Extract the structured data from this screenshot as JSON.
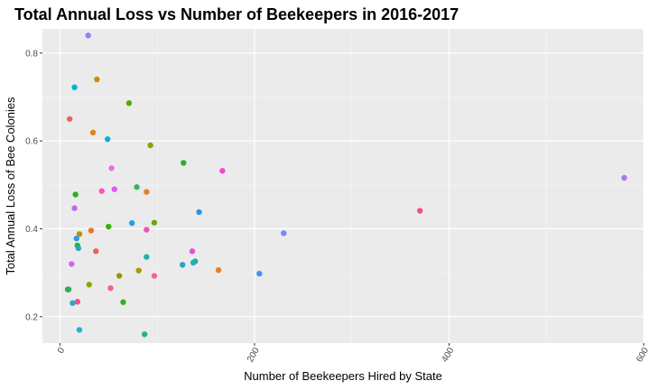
{
  "chart_data": {
    "type": "scatter",
    "title": "Total Annual Loss vs Number of Beekeepers in 2016-2017",
    "xlabel": "Number of Beekeepers Hired by State",
    "ylabel": "Total Annual Loss of Bee Colonies",
    "xlim": [
      -18,
      600
    ],
    "ylim": [
      0.14,
      0.855
    ],
    "x_ticks": [
      0,
      200,
      400,
      600
    ],
    "x_tick_labels": [
      "0",
      "200",
      "400",
      "600"
    ],
    "y_ticks": [
      0.2,
      0.4,
      0.6,
      0.8
    ],
    "y_tick_labels": [
      "0.2",
      "0.4",
      "0.6",
      "0.8"
    ],
    "grid": true,
    "legend": "none",
    "colors": {
      "panel_background": "#ebebeb",
      "grid_major": "#ffffff",
      "grid_minor": "#f6f6f6",
      "tick": "#333333"
    },
    "points": [
      {
        "x": 29,
        "y": 0.84,
        "color": "#9e7bf5"
      },
      {
        "x": 38,
        "y": 0.74,
        "color": "#cf8a00"
      },
      {
        "x": 15,
        "y": 0.722,
        "color": "#00b3d2"
      },
      {
        "x": 71,
        "y": 0.686,
        "color": "#4cae0c"
      },
      {
        "x": 10,
        "y": 0.65,
        "color": "#f06554"
      },
      {
        "x": 34,
        "y": 0.619,
        "color": "#e2841a"
      },
      {
        "x": 49,
        "y": 0.604,
        "color": "#00b2e0"
      },
      {
        "x": 93,
        "y": 0.59,
        "color": "#80a800"
      },
      {
        "x": 127,
        "y": 0.55,
        "color": "#2eae2f"
      },
      {
        "x": 53,
        "y": 0.538,
        "color": "#e86bf3"
      },
      {
        "x": 167,
        "y": 0.532,
        "color": "#f547d8"
      },
      {
        "x": 580,
        "y": 0.516,
        "color": "#ad75f6"
      },
      {
        "x": 79,
        "y": 0.495,
        "color": "#3fb35e"
      },
      {
        "x": 56,
        "y": 0.49,
        "color": "#e455f1"
      },
      {
        "x": 43,
        "y": 0.486,
        "color": "#f755bf"
      },
      {
        "x": 89,
        "y": 0.484,
        "color": "#e3812a"
      },
      {
        "x": 16,
        "y": 0.478,
        "color": "#2fae1f"
      },
      {
        "x": 15,
        "y": 0.447,
        "color": "#c267f7"
      },
      {
        "x": 370,
        "y": 0.441,
        "color": "#f64d8b"
      },
      {
        "x": 143,
        "y": 0.438,
        "color": "#2d93ec"
      },
      {
        "x": 97,
        "y": 0.414,
        "color": "#6fa80c"
      },
      {
        "x": 74,
        "y": 0.413,
        "color": "#1ea1f0"
      },
      {
        "x": 50,
        "y": 0.405,
        "color": "#3ab10a"
      },
      {
        "x": 89,
        "y": 0.398,
        "color": "#f256b2"
      },
      {
        "x": 32,
        "y": 0.396,
        "color": "#e8762a"
      },
      {
        "x": 230,
        "y": 0.39,
        "color": "#7b88f8"
      },
      {
        "x": 20,
        "y": 0.388,
        "color": "#b59400"
      },
      {
        "x": 17,
        "y": 0.378,
        "color": "#2d9af0"
      },
      {
        "x": 18,
        "y": 0.362,
        "color": "#2db01f"
      },
      {
        "x": 19,
        "y": 0.356,
        "color": "#1faabf"
      },
      {
        "x": 37,
        "y": 0.349,
        "color": "#ee5d60"
      },
      {
        "x": 136,
        "y": 0.349,
        "color": "#ea4fd8"
      },
      {
        "x": 89,
        "y": 0.336,
        "color": "#24aeb0"
      },
      {
        "x": 139,
        "y": 0.326,
        "color": "#28af91"
      },
      {
        "x": 137,
        "y": 0.323,
        "color": "#20aebd"
      },
      {
        "x": 12,
        "y": 0.32,
        "color": "#d661f3"
      },
      {
        "x": 126,
        "y": 0.318,
        "color": "#24a5c6"
      },
      {
        "x": 163,
        "y": 0.306,
        "color": "#e47f24"
      },
      {
        "x": 81,
        "y": 0.305,
        "color": "#a79a00"
      },
      {
        "x": 205,
        "y": 0.298,
        "color": "#3f94f5"
      },
      {
        "x": 97,
        "y": 0.293,
        "color": "#f5628c"
      },
      {
        "x": 61,
        "y": 0.293,
        "color": "#a09400"
      },
      {
        "x": 30,
        "y": 0.273,
        "color": "#8fa400"
      },
      {
        "x": 52,
        "y": 0.265,
        "color": "#f75d8c"
      },
      {
        "x": 9,
        "y": 0.262,
        "color": "#21ae91"
      },
      {
        "x": 8,
        "y": 0.262,
        "color": "#34ac54"
      },
      {
        "x": 18,
        "y": 0.234,
        "color": "#f24f8a"
      },
      {
        "x": 13,
        "y": 0.231,
        "color": "#2ea5cd"
      },
      {
        "x": 65,
        "y": 0.233,
        "color": "#3ea822"
      },
      {
        "x": 20,
        "y": 0.17,
        "color": "#22b1d3"
      },
      {
        "x": 87,
        "y": 0.16,
        "color": "#1eb28e"
      }
    ]
  }
}
